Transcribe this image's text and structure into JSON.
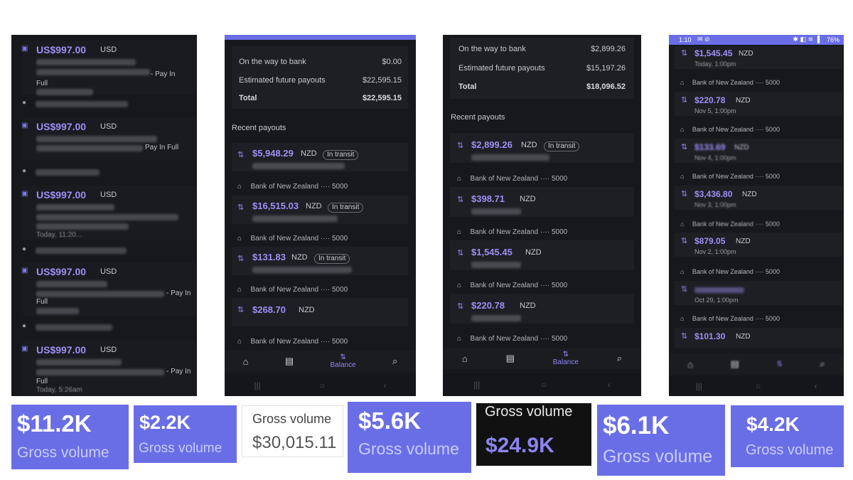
{
  "panel1": {
    "items": [
      {
        "amount": "US$997.00",
        "currency": "USD",
        "desc_tail": "- Pay In",
        "desc_line2": "Full"
      },
      {
        "amount": "US$997.00",
        "currency": "USD",
        "desc_tail": "Pay In Full",
        "desc_line2": ""
      },
      {
        "amount": "US$997.00",
        "currency": "USD",
        "desc_tail": "",
        "desc_line2": "Today, 11:20..."
      },
      {
        "amount": "US$997.00",
        "currency": "USD",
        "desc_tail": "- Pay In",
        "desc_line2": "Full"
      },
      {
        "amount": "US$997.00",
        "currency": "USD",
        "desc_tail": "- Pay In",
        "desc_line2": "Full"
      }
    ],
    "last_time": "Today, 5:26am"
  },
  "panel2": {
    "summary": [
      {
        "label": "On the way to bank",
        "value": "$0.00"
      },
      {
        "label": "Estimated future payouts",
        "value": "$22,595.15"
      },
      {
        "label": "Total",
        "value": "$22,595.15"
      }
    ],
    "section_title": "Recent payouts",
    "payouts": [
      {
        "amount": "$5,948.29",
        "currency": "NZD",
        "status": "In transit",
        "bank": "Bank of New Zealand ···· 5000"
      },
      {
        "amount": "$16,515.03",
        "currency": "NZD",
        "status": "In transit",
        "bank": "Bank of New Zealand ···· 5000"
      },
      {
        "amount": "$131.83",
        "currency": "NZD",
        "status": "In transit",
        "bank": "Bank of New Zealand ···· 5000"
      },
      {
        "amount": "$268.70",
        "currency": "NZD",
        "status": "",
        "bank": "Bank of New Zealand ···· 5000"
      }
    ],
    "nav_active": "Balance"
  },
  "panel3": {
    "summary": [
      {
        "label": "On the way to bank",
        "value": "$2,899.26"
      },
      {
        "label": "Estimated future payouts",
        "value": "$15,197.26"
      },
      {
        "label": "Total",
        "value": "$18,096.52"
      }
    ],
    "section_title": "Recent payouts",
    "payouts": [
      {
        "amount": "$2,899.26",
        "currency": "NZD",
        "status": "In transit",
        "bank": "Bank of New Zealand ···· 5000"
      },
      {
        "amount": "$398.71",
        "currency": "NZD",
        "status": "",
        "bank": "Bank of New Zealand ···· 5000"
      },
      {
        "amount": "$1,545.45",
        "currency": "NZD",
        "status": "",
        "bank": "Bank of New Zealand ···· 5000"
      },
      {
        "amount": "$220.78",
        "currency": "NZD",
        "status": "",
        "bank": "Bank of New Zealand ···· 5000"
      }
    ],
    "nav_active": "Balance"
  },
  "panel4": {
    "status_time": "1:10",
    "battery": "76%",
    "payouts": [
      {
        "amount": "$1,545.45",
        "currency": "NZD",
        "date": "Today, 1:00pm",
        "bank": "Bank of New Zealand ···· 5000"
      },
      {
        "amount": "$220.78",
        "currency": "NZD",
        "date": "Nov 5, 1:00pm",
        "bank": "Bank of New Zealand ···· 5000"
      },
      {
        "amount": "$133.69",
        "currency": "NZD",
        "date": "Nov 4, 1:00pm",
        "bank": "Bank of New Zealand ···· 5000"
      },
      {
        "amount": "$3,436.80",
        "currency": "NZD",
        "date": "Nov 3, 1:00pm",
        "bank": "Bank of New Zealand ···· 5000"
      },
      {
        "amount": "$879.05",
        "currency": "NZD",
        "date": "Nov 2, 1:00pm",
        "bank": "Bank of New Zealand ···· 5000"
      },
      {
        "amount": "",
        "currency": "",
        "date": "Oct 29, 1:00pm",
        "bank": "Bank of New Zealand ···· 5000"
      },
      {
        "amount": "$101.30",
        "currency": "NZD",
        "date": "",
        "bank": ""
      }
    ]
  },
  "kpis": [
    {
      "value": "$11.2K",
      "label": "Gross volume"
    },
    {
      "value": "$2.2K",
      "label": "Gross volume"
    },
    {
      "value": "$30,015.11",
      "label": "Gross volume"
    },
    {
      "value": "$5.6K",
      "label": "Gross volume"
    },
    {
      "value": "$24.9K",
      "label": "Gross volume"
    },
    {
      "value": "$6.1K",
      "label": "Gross volume"
    },
    {
      "value": "$4.2K",
      "label": "Gross volume"
    }
  ],
  "colors": {
    "accent": "#9d8ff5",
    "kpi_bg": "#6a6ee6",
    "panel_bg": "#17181c"
  },
  "icons": {
    "payout": "transfer-arrows-icon",
    "bank": "bank-icon",
    "user": "user-icon",
    "card": "card-icon"
  }
}
